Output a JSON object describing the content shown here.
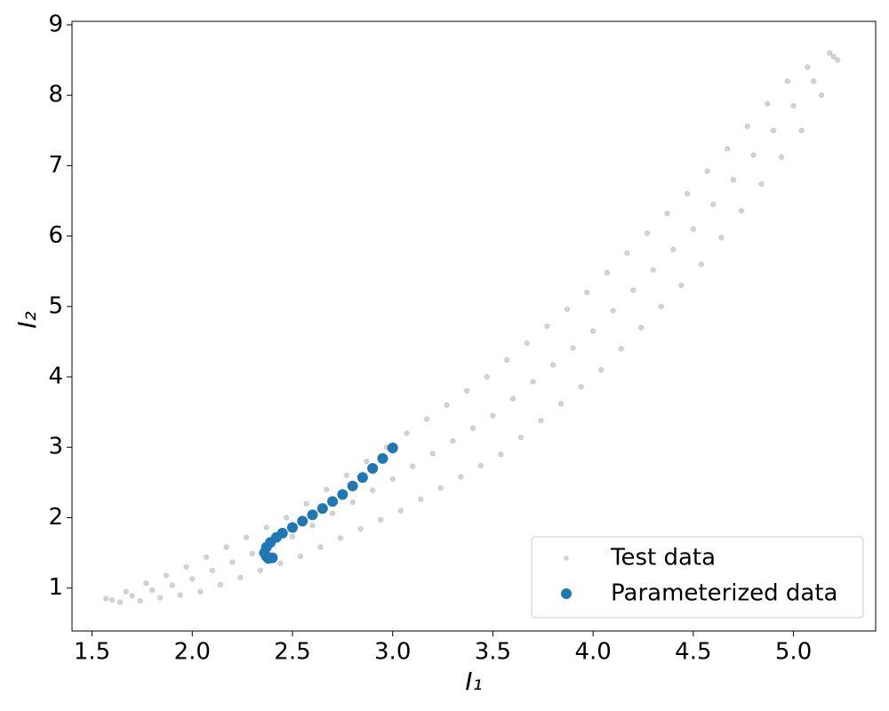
{
  "chart_data": {
    "type": "scatter",
    "xlabel": "I₁",
    "ylabel": "I₂",
    "xlim": [
      1.4,
      5.41
    ],
    "ylim": [
      0.39,
      9.05
    ],
    "xticks": [
      1.5,
      {
        "value": 2,
        "label": "2.0"
      },
      2.5,
      {
        "value": 3,
        "label": "3.0"
      },
      3.5,
      {
        "value": 4,
        "label": "4.0"
      },
      4.5,
      {
        "value": 5,
        "label": "5.0"
      }
    ],
    "yticks": [
      1,
      2,
      3,
      4,
      5,
      6,
      7,
      8,
      9
    ],
    "grid": false,
    "legend": "lower right",
    "series": [
      {
        "name": "Test data",
        "color": "#808080",
        "x": [
          1.64,
          1.6,
          1.57,
          1.74,
          1.7,
          1.67,
          1.84,
          1.8,
          1.77,
          1.94,
          1.9,
          1.87,
          2.04,
          2.0,
          1.97,
          2.14,
          2.1,
          2.07,
          2.24,
          2.2,
          2.17,
          2.34,
          2.3,
          2.27,
          2.44,
          2.4,
          2.37,
          2.54,
          2.5,
          2.47,
          2.64,
          2.6,
          2.57,
          2.74,
          2.7,
          2.67,
          2.84,
          2.8,
          2.77,
          2.94,
          2.9,
          2.87,
          3.04,
          3.0,
          2.97,
          3.14,
          3.1,
          3.07,
          3.24,
          3.2,
          3.17,
          3.34,
          3.3,
          3.27,
          3.44,
          3.4,
          3.37,
          3.54,
          3.5,
          3.47,
          3.64,
          3.6,
          3.57,
          3.74,
          3.7,
          3.67,
          3.84,
          3.8,
          3.77,
          3.94,
          3.9,
          3.87,
          4.04,
          4.0,
          3.97,
          4.14,
          4.1,
          4.07,
          4.24,
          4.2,
          4.17,
          4.34,
          4.3,
          4.27,
          4.44,
          4.4,
          4.37,
          4.54,
          4.5,
          4.47,
          4.64,
          4.6,
          4.57,
          4.74,
          4.7,
          4.67,
          4.84,
          4.8,
          4.77,
          4.94,
          4.9,
          4.87,
          5.04,
          5.0,
          4.97,
          5.14,
          5.1,
          5.07,
          5.22,
          5.2,
          5.18
        ],
        "values": [
          0.8,
          0.83,
          0.85,
          0.82,
          0.89,
          0.95,
          0.86,
          0.97,
          1.07,
          0.9,
          1.04,
          1.18,
          0.95,
          1.13,
          1.3,
          1.05,
          1.25,
          1.44,
          1.15,
          1.37,
          1.58,
          1.25,
          1.49,
          1.72,
          1.35,
          1.61,
          1.86,
          1.45,
          1.73,
          2.0,
          1.58,
          1.89,
          2.2,
          1.71,
          2.06,
          2.4,
          1.84,
          2.22,
          2.6,
          1.97,
          2.39,
          2.8,
          2.1,
          2.55,
          3.0,
          2.26,
          2.73,
          3.2,
          2.42,
          2.91,
          3.4,
          2.58,
          3.09,
          3.6,
          2.74,
          3.27,
          3.8,
          2.9,
          3.45,
          4.0,
          3.14,
          3.69,
          4.24,
          3.38,
          3.93,
          4.48,
          3.62,
          4.17,
          4.72,
          3.86,
          4.41,
          4.96,
          4.1,
          4.65,
          5.2,
          4.4,
          4.94,
          5.48,
          4.7,
          5.23,
          5.76,
          5.0,
          5.52,
          6.04,
          5.3,
          5.81,
          6.32,
          5.6,
          6.1,
          6.6,
          5.98,
          6.45,
          6.92,
          6.36,
          6.8,
          7.24,
          6.74,
          7.15,
          7.56,
          7.12,
          7.5,
          7.88,
          7.5,
          7.85,
          8.2,
          8.0,
          8.2,
          8.4,
          8.5,
          8.55,
          8.6
        ]
      },
      {
        "name": "Parameterized data",
        "color": "#1f77b4",
        "x": [
          2.38,
          2.4,
          2.37,
          2.36,
          2.37,
          2.39,
          2.42,
          2.45,
          2.5,
          2.55,
          2.6,
          2.65,
          2.7,
          2.75,
          2.8,
          2.85,
          2.9,
          2.95,
          3.0
        ],
        "values": [
          1.42,
          1.43,
          1.45,
          1.5,
          1.58,
          1.65,
          1.72,
          1.78,
          1.86,
          1.95,
          2.04,
          2.13,
          2.23,
          2.33,
          2.45,
          2.57,
          2.7,
          2.84,
          2.99
        ]
      }
    ]
  }
}
